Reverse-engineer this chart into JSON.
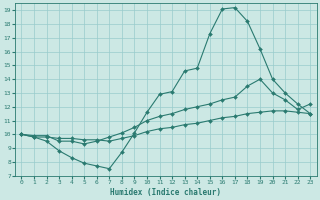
{
  "xlabel": "Humidex (Indice chaleur)",
  "bg_color": "#cce8e4",
  "grid_color": "#99cccc",
  "line_color": "#2a7a70",
  "xlim": [
    -0.5,
    23.5
  ],
  "ylim": [
    7,
    19.5
  ],
  "yticks": [
    7,
    8,
    9,
    10,
    11,
    12,
    13,
    14,
    15,
    16,
    17,
    18,
    19
  ],
  "xticks": [
    0,
    1,
    2,
    3,
    4,
    5,
    6,
    7,
    8,
    9,
    10,
    11,
    12,
    13,
    14,
    15,
    16,
    17,
    18,
    19,
    20,
    21,
    22,
    23
  ],
  "line1_x": [
    0,
    1,
    2,
    3,
    4,
    5,
    6,
    7,
    8,
    9,
    10,
    11,
    12,
    13,
    14,
    15,
    16,
    17,
    18,
    19,
    20,
    21,
    22,
    23
  ],
  "line1_y": [
    10.0,
    9.8,
    9.5,
    8.8,
    8.3,
    7.9,
    7.7,
    7.5,
    8.7,
    10.1,
    11.6,
    12.9,
    13.1,
    14.6,
    14.8,
    17.3,
    19.1,
    19.2,
    18.2,
    16.2,
    14.0,
    13.0,
    12.2,
    11.5
  ],
  "line2_x": [
    0,
    1,
    2,
    3,
    4,
    5,
    6,
    7,
    8,
    9,
    10,
    11,
    12,
    13,
    14,
    15,
    16,
    17,
    18,
    19,
    20,
    21,
    22,
    23
  ],
  "line2_y": [
    10.0,
    9.9,
    9.9,
    9.5,
    9.5,
    9.3,
    9.5,
    9.8,
    10.1,
    10.5,
    11.0,
    11.3,
    11.5,
    11.8,
    12.0,
    12.2,
    12.5,
    12.7,
    13.5,
    14.0,
    13.0,
    12.5,
    11.8,
    12.2
  ],
  "line3_x": [
    0,
    1,
    2,
    3,
    4,
    5,
    6,
    7,
    8,
    9,
    10,
    11,
    12,
    13,
    14,
    15,
    16,
    17,
    18,
    19,
    20,
    21,
    22,
    23
  ],
  "line3_y": [
    10.0,
    9.8,
    9.8,
    9.7,
    9.7,
    9.6,
    9.6,
    9.5,
    9.7,
    9.9,
    10.2,
    10.4,
    10.5,
    10.7,
    10.8,
    11.0,
    11.2,
    11.3,
    11.5,
    11.6,
    11.7,
    11.7,
    11.6,
    11.5
  ]
}
